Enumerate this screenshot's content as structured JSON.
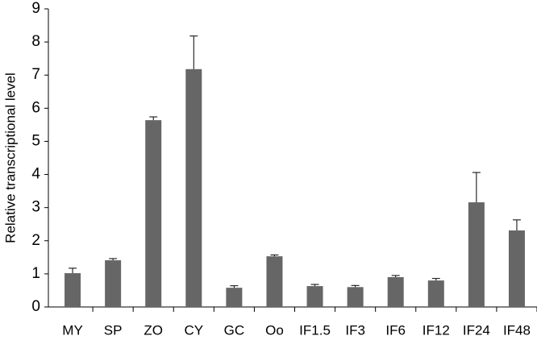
{
  "chart_data": {
    "type": "bar",
    "y_label": "Relative transcriptional level",
    "categories": [
      "MY",
      "SP",
      "ZO",
      "CY",
      "GC",
      "Oo",
      "IF1.5",
      "IF3",
      "IF6",
      "IF12",
      "IF24",
      "IF48"
    ],
    "values": [
      1.02,
      1.41,
      5.64,
      7.18,
      0.58,
      1.53,
      0.63,
      0.6,
      0.9,
      0.8,
      3.16,
      2.31
    ],
    "errors": [
      0.15,
      0.05,
      0.1,
      1.0,
      0.06,
      0.04,
      0.05,
      0.05,
      0.05,
      0.06,
      0.9,
      0.32
    ],
    "color": "#666666",
    "ylim": [
      0,
      9
    ],
    "yticks": [
      0,
      1,
      2,
      3,
      4,
      5,
      6,
      7,
      8,
      9
    ]
  }
}
